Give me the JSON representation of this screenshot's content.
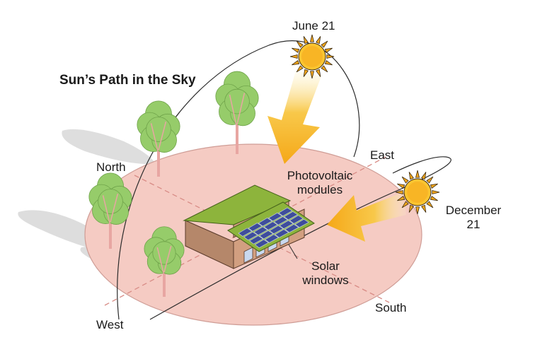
{
  "title": "Sun’s Path in the Sky",
  "labels": {
    "june": "June 21",
    "december_line1": "December",
    "december_line2": "21",
    "north": "North",
    "east": "East",
    "south": "South",
    "west": "West",
    "pv_line1": "Photovoltaic",
    "pv_line2": "modules",
    "solar_line1": "Solar",
    "solar_line2": "windows"
  },
  "colors": {
    "ground": "#f4c8c0",
    "ground_edge": "#c98e88",
    "sun": "#f6a81c",
    "sun_core": "#fbc531",
    "arrow": "#f5b324",
    "roof": "#8cb43c",
    "wall": "#c08b6c",
    "panel": "#3e4d9c",
    "tree": "#96cc6a",
    "trunk": "#e8a6a2"
  }
}
